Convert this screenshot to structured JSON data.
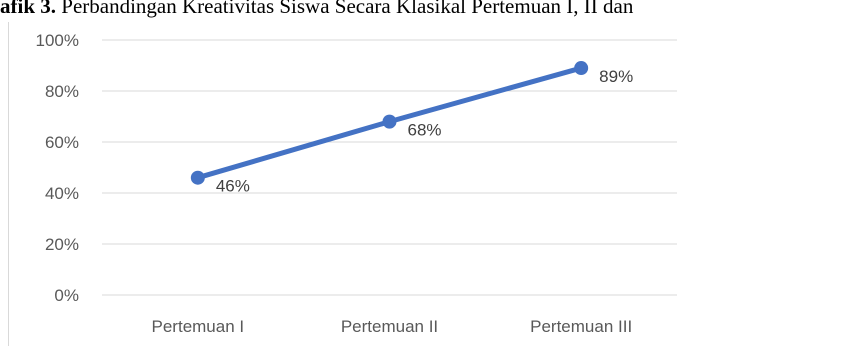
{
  "caption": {
    "label": "afik 3.",
    "text": " Perbandingan Kreativitas Siswa Secara Klasikal Pertemuan I, II dan"
  },
  "chart_data": {
    "type": "line",
    "categories": [
      "Pertemuan I",
      "Pertemuan II",
      "Pertemuan III"
    ],
    "series": [
      {
        "values": [
          46,
          68,
          89
        ],
        "color": "#4472c4"
      }
    ],
    "data_labels": [
      "46%",
      "68%",
      "89%"
    ],
    "y_ticks": [
      "0%",
      "20%",
      "40%",
      "60%",
      "80%",
      "100%"
    ],
    "ylim": [
      0,
      100
    ],
    "grid": true,
    "gridline_color": "#d9d9d9",
    "legend": "none",
    "title": "",
    "xlabel": "",
    "ylabel": ""
  }
}
